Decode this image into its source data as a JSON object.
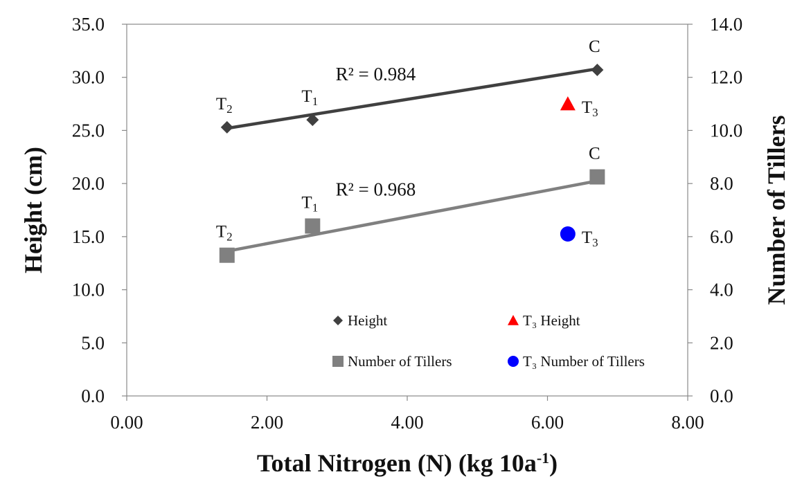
{
  "chart_data": {
    "type": "scatter",
    "xlabel": "Total Nitrogen (N) (kg 10a",
    "xlabel_sup": "-1",
    "xlabel_end": ")",
    "ylabel_left": "Height (cm)",
    "ylabel_right": "Number of Tillers",
    "xlim": [
      0,
      8
    ],
    "ylim_left": [
      0,
      35
    ],
    "ylim_right": [
      0,
      14
    ],
    "x_ticks": [
      "0.00",
      "2.00",
      "4.00",
      "6.00",
      "8.00"
    ],
    "y_left_ticks": [
      "0.0",
      "5.0",
      "10.0",
      "15.0",
      "20.0",
      "25.0",
      "30.0",
      "35.0"
    ],
    "y_right_ticks": [
      "0.0",
      "2.0",
      "4.0",
      "6.0",
      "8.0",
      "10.0",
      "12.0",
      "14.0"
    ],
    "grid": false,
    "legend_position": "bottom-center",
    "series": [
      {
        "name": "Height",
        "axis": "left",
        "marker": "diamond",
        "color": "#404040",
        "points": [
          {
            "x": 1.43,
            "y": 25.3,
            "label": "T",
            "sub": "2"
          },
          {
            "x": 2.65,
            "y": 26.0,
            "label": "T",
            "sub": "1"
          },
          {
            "x": 6.71,
            "y": 30.7,
            "label": "C",
            "sub": ""
          }
        ],
        "trend": {
          "x1": 1.43,
          "y1": 25.2,
          "x2": 6.71,
          "y2": 30.8
        },
        "r2": "R² = 0.984"
      },
      {
        "name": "Number of Tillers",
        "axis": "right",
        "marker": "square",
        "color": "#808080",
        "points": [
          {
            "x": 1.43,
            "y": 5.3,
            "label": "T",
            "sub": "2"
          },
          {
            "x": 2.65,
            "y": 6.4,
            "label": "T",
            "sub": "1"
          },
          {
            "x": 6.71,
            "y": 8.25,
            "label": "C",
            "sub": ""
          }
        ],
        "trend": {
          "x1": 1.43,
          "y1": 5.45,
          "x2": 6.71,
          "y2": 8.1
        },
        "r2": "R² = 0.968"
      },
      {
        "name": "T₃ Height",
        "axis": "left",
        "marker": "triangle",
        "color": "#ff0000",
        "points": [
          {
            "x": 6.29,
            "y": 27.5,
            "label": "T",
            "sub": "3"
          }
        ]
      },
      {
        "name": "T₃ Number of Tillers",
        "axis": "right",
        "marker": "circle",
        "color": "#0000ff",
        "points": [
          {
            "x": 6.29,
            "y": 6.1,
            "label": "T",
            "sub": "3"
          }
        ]
      }
    ]
  }
}
